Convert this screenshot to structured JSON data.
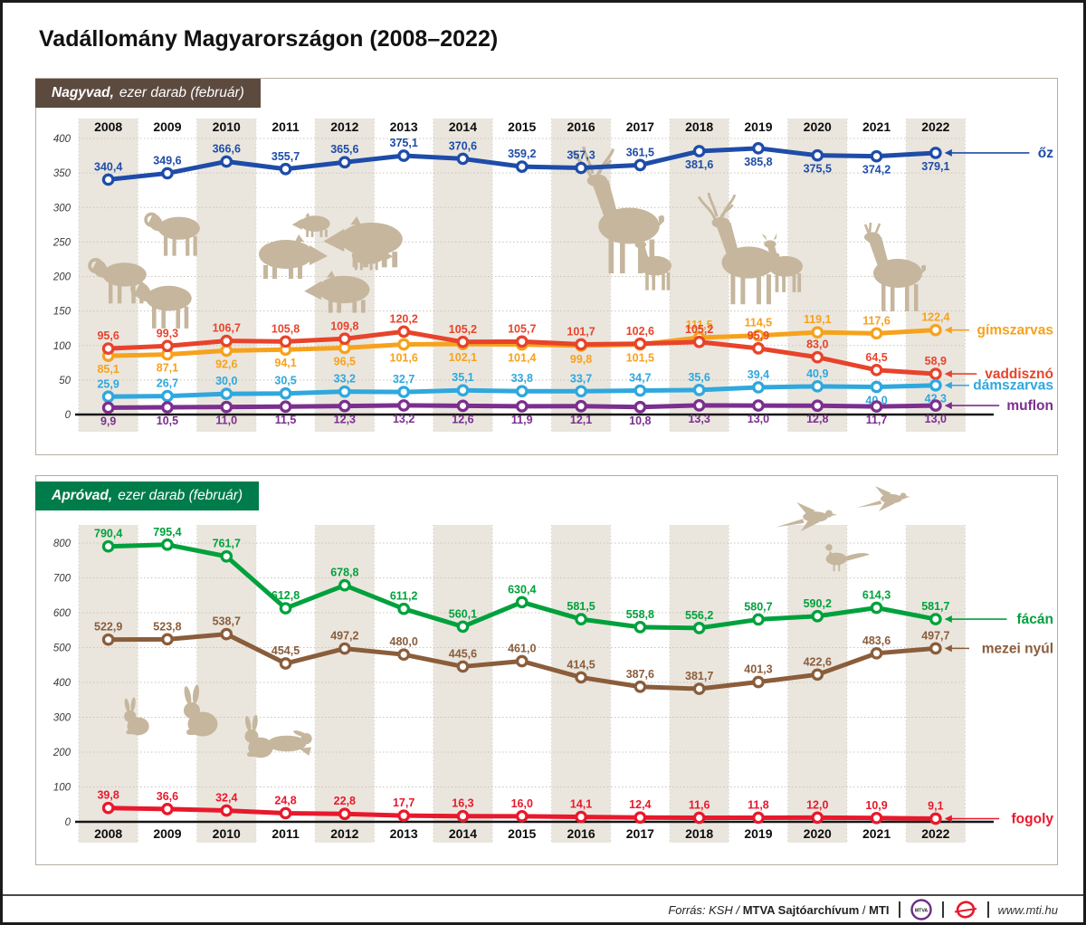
{
  "title": "Vadállomány Magyarországon (2008–2022)",
  "chart_data": [
    {
      "key": "nagyvad",
      "type": "line",
      "badge_bold": "Nagyvad,",
      "badge_rest": "ezer darab (február)",
      "categories": [
        "2008",
        "2009",
        "2010",
        "2011",
        "2012",
        "2013",
        "2014",
        "2015",
        "2016",
        "2017",
        "2018",
        "2019",
        "2020",
        "2021",
        "2022"
      ],
      "ylim": [
        0,
        400
      ],
      "ytick_step": 50,
      "yticks": [
        "0",
        "50",
        "100",
        "150",
        "200",
        "250",
        "300",
        "350",
        "400"
      ],
      "years_position": "top",
      "grid": "dotted",
      "legend_position": "right-arrows",
      "series": [
        {
          "key": "oz",
          "name": "őz",
          "color": "#1e4ca8",
          "values": [
            340.4,
            349.6,
            366.6,
            355.7,
            365.6,
            375.1,
            370.6,
            359.2,
            357.3,
            361.5,
            381.6,
            385.8,
            375.5,
            374.2,
            379.1
          ],
          "label_below": [
            10,
            11,
            12,
            13,
            14
          ]
        },
        {
          "key": "gimszarvas",
          "name": "gímszarvas",
          "color": "#f6a21d",
          "values": [
            85.1,
            87.1,
            92.6,
            94.1,
            96.5,
            101.6,
            102.1,
            101.4,
            99.8,
            101.5,
            111.5,
            114.5,
            119.1,
            117.6,
            122.4
          ],
          "label_below": [
            0,
            1,
            2,
            3,
            4,
            5,
            6,
            7,
            8,
            9
          ]
        },
        {
          "key": "vaddiszno",
          "name": "vaddisznó",
          "color": "#e8432b",
          "values": [
            95.6,
            99.3,
            106.7,
            105.8,
            109.8,
            120.2,
            105.2,
            105.7,
            101.7,
            102.6,
            105.2,
            95.9,
            83.0,
            64.5,
            58.9
          ],
          "label_below": []
        },
        {
          "key": "damszarvas",
          "name": "dámszarvas",
          "color": "#2fa8dd",
          "values": [
            25.9,
            26.7,
            30.0,
            30.5,
            33.2,
            32.7,
            35.1,
            33.8,
            33.7,
            34.7,
            35.6,
            39.4,
            40.9,
            40.0,
            42.3
          ],
          "label_below": [
            13,
            14
          ]
        },
        {
          "key": "muflon",
          "name": "muflon",
          "color": "#7b2f8e",
          "values": [
            9.9,
            10.5,
            11.0,
            11.5,
            12.3,
            13.2,
            12.6,
            11.9,
            12.1,
            10.8,
            13.3,
            13.0,
            12.8,
            11.7,
            13.0
          ],
          "label_below": [
            0,
            1,
            2,
            3,
            4,
            5,
            6,
            7,
            8,
            9,
            10,
            11,
            12,
            13,
            14
          ]
        }
      ]
    },
    {
      "key": "aprovad",
      "type": "line",
      "badge_bold": "Apróvad,",
      "badge_rest": "ezer darab (február)",
      "categories": [
        "2008",
        "2009",
        "2010",
        "2011",
        "2012",
        "2013",
        "2014",
        "2015",
        "2016",
        "2017",
        "2018",
        "2019",
        "2020",
        "2021",
        "2022"
      ],
      "ylim": [
        0,
        800
      ],
      "ytick_step": 100,
      "yticks": [
        "0",
        "100",
        "200",
        "300",
        "400",
        "500",
        "600",
        "700",
        "800"
      ],
      "years_position": "bottom",
      "grid": "dotted",
      "legend_position": "right-arrows",
      "series": [
        {
          "key": "facan",
          "name": "fácán",
          "color": "#00a13c",
          "values": [
            790.4,
            795.4,
            761.7,
            612.8,
            678.8,
            611.2,
            560.1,
            630.4,
            581.5,
            558.8,
            556.2,
            580.7,
            590.2,
            614.3,
            581.7
          ],
          "label_below": []
        },
        {
          "key": "mezei-nyul",
          "name": "mezei nyúl",
          "color": "#8a5d3b",
          "values": [
            522.9,
            523.8,
            538.7,
            454.5,
            497.2,
            480.0,
            445.6,
            461.0,
            414.5,
            387.6,
            381.7,
            401.3,
            422.6,
            483.6,
            497.7
          ],
          "label_below": []
        },
        {
          "key": "fogoly",
          "name": "fogoly",
          "color": "#e8192c",
          "values": [
            39.8,
            36.6,
            32.4,
            24.8,
            22.8,
            17.7,
            16.3,
            16.0,
            14.1,
            12.4,
            11.6,
            11.8,
            12.0,
            10.9,
            9.1
          ],
          "label_below": []
        }
      ]
    }
  ],
  "footer": {
    "source_italic": "Forrás: KSH /",
    "source_bold_1": "MTVA Sajtóarchívum",
    "source_slash": "/",
    "source_bold_2": "MTI",
    "mtva_logo_text": "MTVA",
    "website": "www.mti.hu"
  }
}
